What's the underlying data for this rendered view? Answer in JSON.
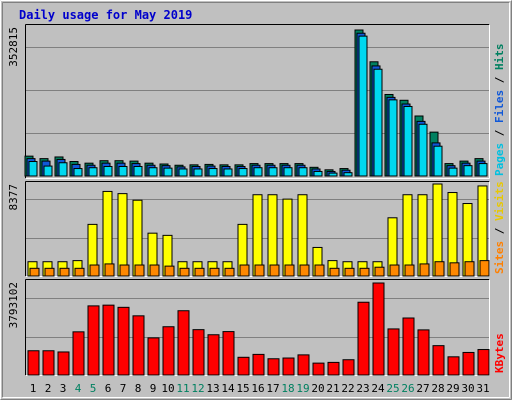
{
  "chart_data": {
    "type": "bar",
    "title": "Daily usage for May 2019",
    "categories": [
      "1",
      "2",
      "3",
      "4",
      "5",
      "6",
      "7",
      "8",
      "9",
      "10",
      "11",
      "12",
      "13",
      "14",
      "15",
      "16",
      "17",
      "18",
      "19",
      "20",
      "21",
      "22",
      "23",
      "24",
      "25",
      "26",
      "27",
      "28",
      "29",
      "30",
      "31"
    ],
    "weekend_categories": [
      "4",
      "5",
      "11",
      "12",
      "18",
      "19",
      "25",
      "26"
    ],
    "colors": {
      "title": "#0000cc",
      "pages": "#00c0e0",
      "files": "#1058d8",
      "hits": "#008060",
      "sites": "#ff8000",
      "visits": "#e8c800",
      "kbytes": "#ff0000",
      "weekend_label": "#008060",
      "pages_bar": "#00d8f0",
      "visits_bar": "#ffff00",
      "sites_bar": "#ff8800",
      "kbytes_bar": "#ff0000"
    },
    "panels": [
      {
        "max_label": "352815",
        "ylim": [
          0,
          352815
        ],
        "legend": [
          {
            "text": "Pages",
            "color_key": "pages"
          },
          {
            "text": " / ",
            "color_key": "sep"
          },
          {
            "text": "Files",
            "color_key": "files"
          },
          {
            "text": " / ",
            "color_key": "sep"
          },
          {
            "text": "Hits",
            "color_key": "hits"
          }
        ],
        "series": [
          {
            "name": "Hits",
            "values": [
              48000,
              42000,
              46000,
              35000,
              31000,
              37000,
              37000,
              36000,
              31000,
              29000,
              26000,
              27000,
              28000,
              27000,
              27000,
              30000,
              30000,
              30000,
              30000,
              21000,
              15000,
              18000,
              352815,
              276000,
              197000,
              183000,
              145000,
              106000,
              30000,
              36000,
              42000
            ]
          },
          {
            "name": "Files",
            "values": [
              42000,
              36000,
              40000,
              28000,
              26000,
              31000,
              31000,
              30000,
              26000,
              25000,
              22000,
              23000,
              24000,
              23000,
              23000,
              26000,
              26000,
              26000,
              26000,
              17000,
              11000,
              14000,
              345000,
              266000,
              190000,
              174000,
              132000,
              80000,
              25000,
              31000,
              36000
            ]
          },
          {
            "name": "Pages",
            "values": [
              35000,
              24000,
              32000,
              18000,
              20000,
              23000,
              23000,
              23000,
              20000,
              19000,
              17000,
              17000,
              18000,
              17000,
              18000,
              20000,
              20000,
              20000,
              20000,
              11000,
              7000,
              8000,
              338000,
              258000,
              184000,
              168000,
              125000,
              72000,
              19000,
              25000,
              30000
            ]
          }
        ]
      },
      {
        "max_label": "8377",
        "ylim": [
          0,
          8377
        ],
        "legend": [
          {
            "text": "Sites",
            "color_key": "sites"
          },
          {
            "text": " / ",
            "color_key": "sep"
          },
          {
            "text": "Visits",
            "color_key": "visits"
          }
        ],
        "series": [
          {
            "name": "Visits",
            "values": [
              1300,
              1300,
              1300,
              1400,
              4700,
              7700,
              7500,
              6900,
              3900,
              3700,
              1300,
              1300,
              1300,
              1300,
              4700,
              7400,
              7400,
              7000,
              7400,
              2600,
              1400,
              1300,
              1300,
              1300,
              5300,
              7400,
              7400,
              8377,
              7600,
              6600,
              8200
            ]
          },
          {
            "name": "Sites",
            "values": [
              700,
              700,
              700,
              700,
              1000,
              1100,
              1000,
              1000,
              1000,
              900,
              700,
              700,
              700,
              700,
              1000,
              1000,
              1000,
              1000,
              1000,
              1000,
              700,
              700,
              700,
              800,
              1000,
              1000,
              1100,
              1300,
              1200,
              1300,
              1400
            ]
          }
        ]
      },
      {
        "max_label": "3793102",
        "ylim": [
          0,
          3793102
        ],
        "legend": [
          {
            "text": "KBytes",
            "color_key": "kbytes"
          }
        ],
        "series": [
          {
            "name": "KBytes",
            "values": [
              1000000,
              1000000,
              950000,
              1780000,
              2850000,
              2880000,
              2790000,
              2440000,
              1530000,
              1990000,
              2650000,
              1870000,
              1660000,
              1790000,
              730000,
              850000,
              670000,
              700000,
              830000,
              490000,
              520000,
              630000,
              3000000,
              3793102,
              1900000,
              2350000,
              1860000,
              1210000,
              750000,
              930000,
              1050000
            ]
          }
        ]
      }
    ]
  }
}
